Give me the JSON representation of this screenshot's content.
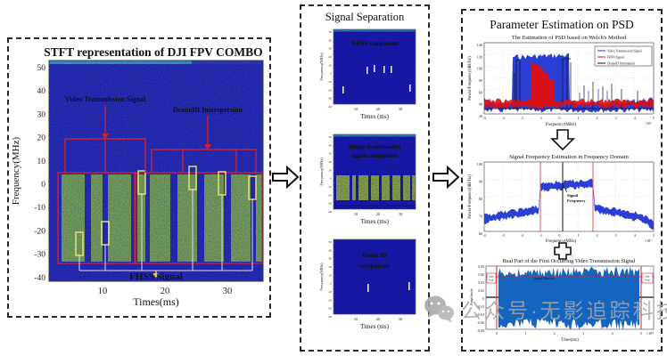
{
  "left_panel": {
    "title": "STFT representation of DJI FPV COMBO",
    "ylabel": "Frequency(MHz)",
    "xlabel": "Times(ms)",
    "yticks": [
      "50",
      "40",
      "30",
      "20",
      "10",
      "0",
      "-10",
      "-20",
      "-30",
      "-40"
    ],
    "xticks": [
      "10",
      "20",
      "30"
    ],
    "label_video": "Video Transmission Signal",
    "label_droneid": "DroneID Interspersion",
    "label_fhss": "FHSS Signal"
  },
  "middle_panel": {
    "title": "Signal Separation",
    "ylabel": "Frequency(MHz)",
    "xlabel": "Times (ms)",
    "yticks": [
      "50",
      "40",
      "30",
      "20",
      "10",
      "0",
      "-10",
      "-20",
      "-30",
      "-40"
    ],
    "xticks": [
      "10",
      "20",
      "30"
    ],
    "plots": [
      {
        "label_lines": [
          "FHSS component"
        ]
      },
      {
        "label_lines": [
          "Image transmission",
          "signal component"
        ]
      },
      {
        "label_lines": [
          "Drone ID",
          "component"
        ]
      }
    ]
  },
  "right_panel": {
    "title": "Parameter Estimation on PSD",
    "psd_plot": {
      "title": "The Estimation of PSD based on Welch's Method",
      "ylabel": "Power/Frequency(dB/Hz)",
      "xlabel": "Frequency(MHz)",
      "scale": "×10⁷",
      "yticks": [
        "140",
        "120",
        "100",
        "80",
        "60",
        "40",
        "20"
      ],
      "xticks": [
        "-4",
        "-3",
        "-2",
        "-1",
        "0",
        "1",
        "2",
        "3",
        "4",
        "5"
      ],
      "legend": [
        "Video Transmission Signal",
        "FHSS Signal",
        "DroneID Information"
      ]
    },
    "freq_plot": {
      "title": "Signal Frequency Estimation in Frequency Domain",
      "ylabel": "Power/Frequency(dB/Hz)",
      "xlabel": "Frequency(MHz)",
      "scale": "×10⁷",
      "yticks": [
        "100",
        "90",
        "80",
        "70",
        "60"
      ],
      "xticks": [
        "-4",
        "-3",
        "-2",
        "-1",
        "0",
        "1",
        "2",
        "3",
        "4",
        "5"
      ],
      "annotation_lines": [
        "Signal",
        "Frequency"
      ]
    },
    "time_plot": {
      "title": "Real Part of the First Occurring Video Transmission Signal",
      "ylabel": "Amplitude",
      "xlabel": "Time(ms)",
      "scale": "×10⁴",
      "yticks": [
        "0.08",
        "0.06",
        "0.04",
        "0.02",
        "0",
        "-0.02",
        "-0.04",
        "-0.06",
        "-0.08"
      ],
      "xticks": [
        "0",
        "1",
        "2",
        "3",
        "4",
        "5"
      ],
      "start_lines": [
        "Start",
        "Point"
      ],
      "end_lines": [
        "End",
        "Point"
      ],
      "mid_label": "Signal Duration"
    }
  },
  "watermark": {
    "text": "公众号·无影追踪科技"
  },
  "colors": {
    "spectrogram_bg": "#2020b8",
    "signal_green": "#8cbe3c",
    "annotation_red": "#cc2233",
    "fhss_yellow": "#f0c830",
    "trace_blue": "#1a2fd0",
    "trace_red": "#e01010",
    "trace_black": "#111111",
    "watermark_gray": "#a4a4a4"
  },
  "chart_data": [
    {
      "type": "heatmap",
      "title": "STFT representation of DJI FPV COMBO",
      "xlabel": "Times(ms)",
      "ylabel": "Frequency(MHz)",
      "xlim": [
        0,
        37
      ],
      "ylim": [
        -50,
        55
      ],
      "description": "Spectrogram: video transmission bursts (green) occupy ~+4 to -33 MHz; FHSS hops boxed in yellow; two red-bracketed groups labelled Video Transmission Signal and DroneID Interspersion; FHSS Signal marked along bottom",
      "video_burst_times_ms": [
        [
          2,
          6
        ],
        [
          7,
          9
        ],
        [
          10,
          13
        ],
        [
          14,
          15
        ],
        [
          16,
          19
        ],
        [
          20,
          23
        ],
        [
          25,
          28
        ],
        [
          29,
          32
        ],
        [
          33,
          36
        ]
      ]
    },
    {
      "type": "heatmap",
      "title": "FHSS component",
      "xlim": [
        0,
        37
      ],
      "ylim": [
        -50,
        55
      ],
      "description": "Sparse narrow hops near 0 MHz at ~15-30 ms and near -30 MHz at ~5 and ~36 ms"
    },
    {
      "type": "heatmap",
      "title": "Image transmission signal component",
      "xlim": [
        0,
        37
      ],
      "ylim": [
        -50,
        55
      ],
      "description": "Repeated vertical bands from ~0 to -30 MHz across 2-36 ms"
    },
    {
      "type": "heatmap",
      "title": "Drone ID component",
      "xlim": [
        0,
        37
      ],
      "ylim": [
        -50,
        55
      ],
      "description": "Two short bursts near -15 MHz at ~15 ms and ~33 ms"
    },
    {
      "type": "line",
      "title": "The Estimation of PSD based on Welch's Method",
      "xlabel": "Frequency(MHz) ×10^7",
      "ylabel": "Power/Frequency(dB/Hz)",
      "xlim": [
        -4,
        5
      ],
      "series": [
        {
          "name": "Video Transmission Signal",
          "shape": "broad plateau ~-2.5e7 to 0.5e7 raised ~50 dB above noise floor"
        },
        {
          "name": "FHSS Signal",
          "shape": "descending block ~-1.5e7 to -0.4e7"
        },
        {
          "name": "DroneID Information",
          "shape": "tall spikes at plateau edges plus small spikes 1e7-3e7"
        }
      ]
    },
    {
      "type": "line",
      "title": "Signal Frequency Estimation in Frequency Domain",
      "xlabel": "Frequency(MHz) ×10^7",
      "ylabel": "Power/Frequency(dB/Hz)",
      "xlim": [
        -4,
        5
      ],
      "description": "Blue PSD plateau between red band-edge markers; black vertical line annotated Signal Frequency near band centre"
    },
    {
      "type": "line",
      "title": "Real Part of the First Occurring Video Transmission Signal",
      "xlabel": "Time(ms) ×10^4",
      "ylabel": "Amplitude",
      "ylim": [
        -0.08,
        0.08
      ],
      "description": "Dense waveform of amplitude ~±0.06 between red Start Point and End Point markers; red threshold line near 0.05"
    }
  ]
}
